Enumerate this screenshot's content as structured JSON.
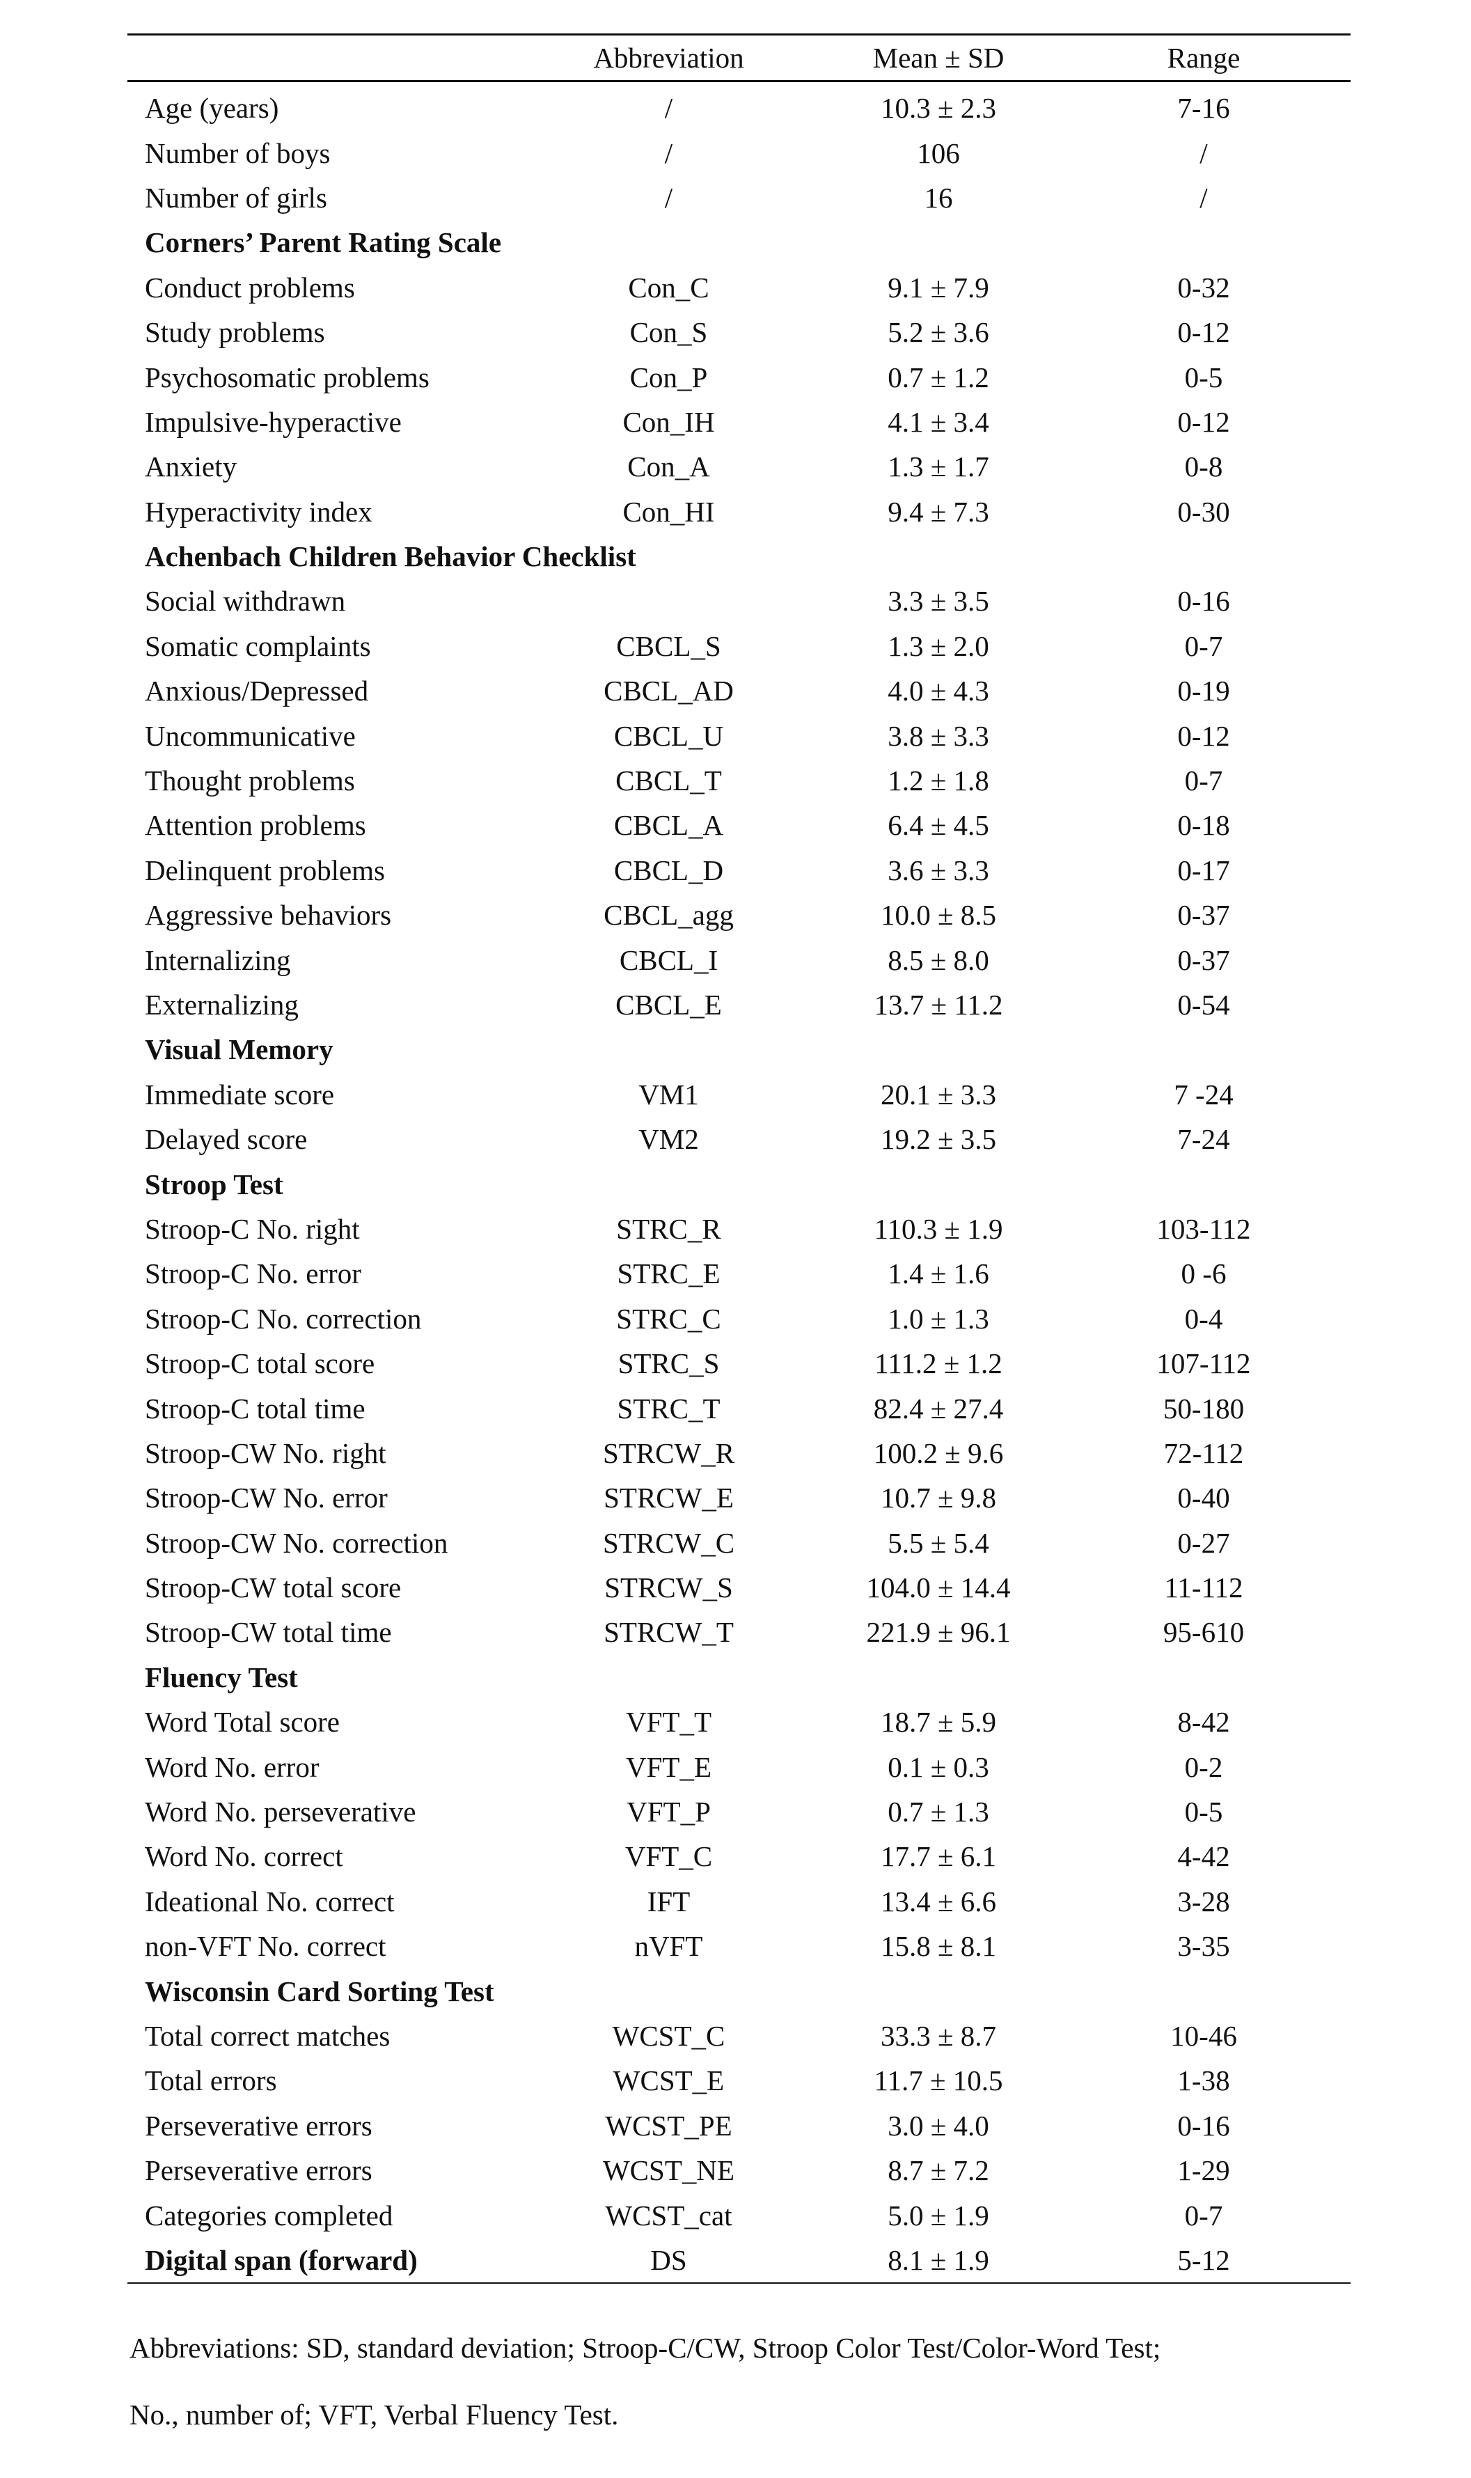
{
  "header": {
    "c0": "",
    "c1": "Abbreviation",
    "c2": "Mean ± SD",
    "c3": "Range"
  },
  "rows": [
    {
      "label": "Age (years)",
      "abbr": "/",
      "mean": "10.3 ± 2.3",
      "range": "7-16"
    },
    {
      "label": "Number of boys",
      "abbr": "/",
      "mean": "106",
      "range": "/"
    },
    {
      "label": "Number of girls",
      "abbr": "/",
      "mean": "16",
      "range": "/"
    },
    {
      "label": "Corners’ Parent Rating Scale",
      "abbr": "",
      "mean": "",
      "range": "",
      "section": true
    },
    {
      "label": "Conduct problems",
      "abbr": "Con_C",
      "mean": "9.1 ± 7.9",
      "range": "0-32"
    },
    {
      "label": "Study problems",
      "abbr": "Con_S",
      "mean": "5.2 ± 3.6",
      "range": "0-12"
    },
    {
      "label": "Psychosomatic problems",
      "abbr": "Con_P",
      "mean": "0.7 ± 1.2",
      "range": "0-5"
    },
    {
      "label": "Impulsive-hyperactive",
      "abbr": "Con_IH",
      "mean": "4.1 ± 3.4",
      "range": "0-12"
    },
    {
      "label": "Anxiety",
      "abbr": "Con_A",
      "mean": "1.3 ± 1.7",
      "range": "0-8"
    },
    {
      "label": "Hyperactivity index",
      "abbr": "Con_HI",
      "mean": "9.4 ± 7.3",
      "range": "0-30"
    },
    {
      "label": "Achenbach Children Behavior Checklist",
      "abbr": "",
      "mean": "",
      "range": "",
      "section": true
    },
    {
      "label": "Social withdrawn",
      "abbr": "",
      "mean": "3.3 ± 3.5",
      "range": "0-16"
    },
    {
      "label": "Somatic complaints",
      "abbr": "CBCL_S",
      "mean": "1.3 ± 2.0",
      "range": "0-7"
    },
    {
      "label": "Anxious/Depressed",
      "abbr": "CBCL_AD",
      "mean": "4.0 ± 4.3",
      "range": "0-19"
    },
    {
      "label": "Uncommunicative",
      "abbr": "CBCL_U",
      "mean": "3.8 ± 3.3",
      "range": "0-12"
    },
    {
      "label": "Thought problems",
      "abbr": "CBCL_T",
      "mean": "1.2 ± 1.8",
      "range": "0-7"
    },
    {
      "label": "Attention problems",
      "abbr": "CBCL_A",
      "mean": "6.4 ± 4.5",
      "range": "0-18"
    },
    {
      "label": "Delinquent problems",
      "abbr": "CBCL_D",
      "mean": "3.6 ± 3.3",
      "range": "0-17"
    },
    {
      "label": "Aggressive behaviors",
      "abbr": "CBCL_agg",
      "mean": "10.0 ± 8.5",
      "range": "0-37"
    },
    {
      "label": "Internalizing",
      "abbr": "CBCL_I",
      "mean": "8.5 ± 8.0",
      "range": "0-37"
    },
    {
      "label": "Externalizing",
      "abbr": "CBCL_E",
      "mean": "13.7 ± 11.2",
      "range": "0-54"
    },
    {
      "label": "Visual Memory",
      "abbr": "",
      "mean": "",
      "range": "",
      "section": true
    },
    {
      "label": "Immediate score",
      "abbr": "VM1",
      "mean": "20.1 ± 3.3",
      "range": "7 -24"
    },
    {
      "label": "Delayed score",
      "abbr": "VM2",
      "mean": "19.2 ± 3.5",
      "range": "7-24"
    },
    {
      "label": "Stroop Test",
      "abbr": "",
      "mean": "",
      "range": "",
      "section": true
    },
    {
      "label": "Stroop-C No. right",
      "abbr": "STRC_R",
      "mean": "110.3 ± 1.9",
      "range": "103-112"
    },
    {
      "label": "Stroop-C No. error",
      "abbr": "STRC_E",
      "mean": "1.4 ± 1.6",
      "range": "0 -6"
    },
    {
      "label": "Stroop-C No. correction",
      "abbr": "STRC_C",
      "mean": "1.0 ± 1.3",
      "range": "0-4"
    },
    {
      "label": "Stroop-C total score",
      "abbr": "STRC_S",
      "mean": "111.2 ± 1.2",
      "range": "107-112"
    },
    {
      "label": "Stroop-C total time",
      "abbr": "STRC_T",
      "mean": "82.4 ± 27.4",
      "range": "50-180"
    },
    {
      "label": "Stroop-CW No. right",
      "abbr": "STRCW_R",
      "mean": "100.2 ± 9.6",
      "range": "72-112"
    },
    {
      "label": "Stroop-CW No. error",
      "abbr": "STRCW_E",
      "mean": "10.7 ± 9.8",
      "range": "0-40"
    },
    {
      "label": "Stroop-CW No. correction",
      "abbr": "STRCW_C",
      "mean": "5.5 ± 5.4",
      "range": "0-27"
    },
    {
      "label": "Stroop-CW total score",
      "abbr": "STRCW_S",
      "mean": "104.0 ± 14.4",
      "range": "11-112"
    },
    {
      "label": "Stroop-CW total time",
      "abbr": "STRCW_T",
      "mean": "221.9 ± 96.1",
      "range": "95-610"
    },
    {
      "label": "Fluency Test",
      "abbr": "",
      "mean": "",
      "range": "",
      "section": true
    },
    {
      "label": "Word Total score",
      "abbr": "VFT_T",
      "mean": "18.7 ± 5.9",
      "range": "8-42"
    },
    {
      "label": "Word No. error",
      "abbr": "VFT_E",
      "mean": "0.1 ± 0.3",
      "range": "0-2"
    },
    {
      "label": "Word No. perseverative",
      "abbr": "VFT_P",
      "mean": "0.7 ± 1.3",
      "range": "0-5"
    },
    {
      "label": "Word No. correct",
      "abbr": "VFT_C",
      "mean": "17.7 ± 6.1",
      "range": "4-42"
    },
    {
      "label": "Ideational No. correct",
      "abbr": "IFT",
      "mean": "13.4 ± 6.6",
      "range": "3-28"
    },
    {
      "label": "non-VFT No. correct",
      "abbr": "nVFT",
      "mean": "15.8 ± 8.1",
      "range": "3-35"
    },
    {
      "label": "Wisconsin Card Sorting Test",
      "abbr": "",
      "mean": "",
      "range": "",
      "section": true
    },
    {
      "label": "Total correct matches",
      "abbr": "WCST_C",
      "mean": "33.3 ± 8.7",
      "range": "10-46"
    },
    {
      "label": "Total errors",
      "abbr": "WCST_E",
      "mean": "11.7 ± 10.5",
      "range": "1-38"
    },
    {
      "label": "Perseverative errors",
      "abbr": "WCST_PE",
      "mean": "3.0 ± 4.0",
      "range": "0-16"
    },
    {
      "label": "Perseverative errors",
      "abbr": "WCST_NE",
      "mean": "8.7 ± 7.2",
      "range": "1-29"
    },
    {
      "label": "Categories completed",
      "abbr": "WCST_cat",
      "mean": "5.0 ± 1.9",
      "range": "0-7"
    },
    {
      "label": "Digital span (forward)",
      "abbr": "DS",
      "mean": "8.1 ± 1.9",
      "range": "5-12",
      "section": true
    }
  ],
  "footnote": {
    "line1": "Abbreviations: SD, standard deviation; Stroop-C/CW, Stroop Color Test/Color-Word Test;",
    "line2": "No., number of; VFT, Verbal Fluency Test."
  }
}
